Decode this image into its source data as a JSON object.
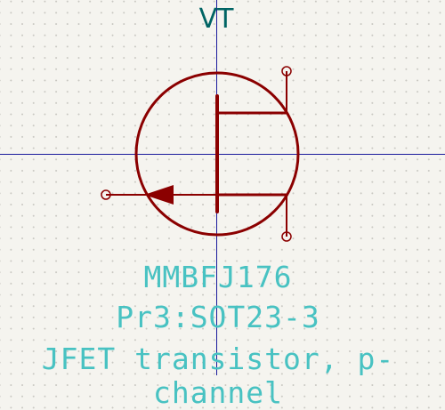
{
  "symbol": {
    "reference": "VT",
    "value": "MMBFJ176",
    "footprint": "Pr3:SOT23-3",
    "description": "JFET transistor, p-channel"
  },
  "colors": {
    "background": "#f5f4ef",
    "grid_dot": "#c9c8c2",
    "crosshair": "#1a1a9c",
    "body": "#8b0000",
    "pin": "#8b0000",
    "reference_text": "#006464",
    "field_text": "#48c2c2"
  }
}
